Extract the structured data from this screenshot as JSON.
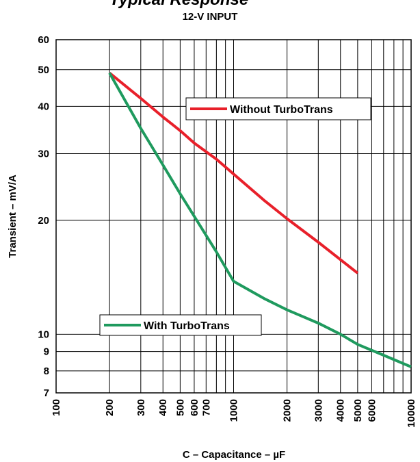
{
  "header": {
    "title_partial": "Typical Response",
    "subtitle": "12-V INPUT"
  },
  "chart_data": {
    "type": "line",
    "subtitle": "12-V INPUT",
    "xlabel": "C – Capacitance – µF",
    "ylabel": "Transient – mV/A",
    "xscale": "log",
    "yscale": "log",
    "xlim": [
      100,
      10000
    ],
    "ylim": [
      7,
      60
    ],
    "x_ticks": [
      100,
      200,
      300,
      400,
      500,
      600,
      700,
      1000,
      2000,
      3000,
      4000,
      5000,
      6000,
      10000
    ],
    "x_tick_labels": [
      "100",
      "200",
      "300",
      "400",
      "500",
      "600",
      "700",
      "1000",
      "2000",
      "3000",
      "4000",
      "5000",
      "6000",
      "10000"
    ],
    "x_grid": [
      100,
      200,
      300,
      400,
      500,
      600,
      700,
      800,
      900,
      1000,
      2000,
      3000,
      4000,
      5000,
      6000,
      7000,
      8000,
      9000,
      10000
    ],
    "y_ticks": [
      7,
      8,
      9,
      10,
      20,
      30,
      40,
      50,
      60
    ],
    "y_tick_labels": [
      "7",
      "8",
      "9",
      "10",
      "20",
      "30",
      "40",
      "50",
      "60"
    ],
    "grid": true,
    "series": [
      {
        "name": "Without TurboTrans",
        "color": "#e8202a",
        "x": [
          200,
          300,
          400,
          500,
          600,
          800,
          1000,
          1500,
          2000,
          3000,
          5000
        ],
        "y": [
          49,
          42,
          37.5,
          34.5,
          32,
          29,
          26.5,
          22.5,
          20.2,
          17.5,
          14.5
        ]
      },
      {
        "name": "With TurboTrans",
        "color": "#1f9a5e",
        "x": [
          200,
          300,
          400,
          500,
          600,
          800,
          1000,
          1500,
          2000,
          3000,
          4000,
          5000,
          7000,
          10000
        ],
        "y": [
          49,
          35,
          28,
          23.5,
          20.5,
          16.5,
          13.8,
          12.4,
          11.6,
          10.7,
          10,
          9.4,
          8.8,
          8.2
        ]
      }
    ],
    "legend": [
      {
        "label": "Without TurboTrans",
        "placement": "upper-right"
      },
      {
        "label": "With TurboTrans",
        "placement": "lower-left"
      }
    ]
  }
}
